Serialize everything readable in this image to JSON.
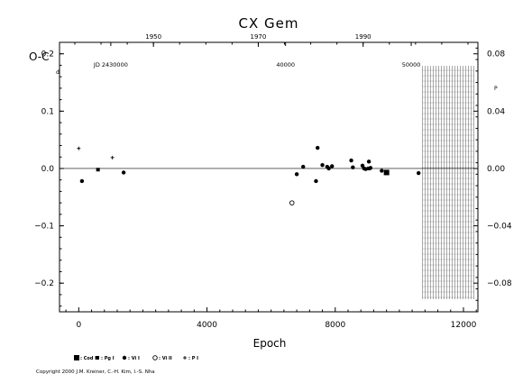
{
  "chart_data": {
    "type": "scatter",
    "title": "CX Gem",
    "ylabel_left": "O-C",
    "ylabel_left_unit": "d",
    "ylabel_right_unit": "P",
    "xlabel": "Epoch",
    "xlim": [
      -600,
      12450
    ],
    "ylim": [
      -0.25,
      0.22
    ],
    "x_ticks": [
      0,
      4000,
      8000,
      12000
    ],
    "x_tick_labels": [
      "0",
      "4000",
      "8000",
      "12000"
    ],
    "y_ticks": [
      0.2,
      0.1,
      0.0,
      -0.1,
      -0.2
    ],
    "y_tick_labels": [
      "0.2",
      "0.1",
      "0.0",
      "−0.1",
      "−0.2"
    ],
    "right_ticks": [
      0.08,
      0.04,
      0.0,
      -0.04,
      -0.08
    ],
    "right_tick_labels": [
      "0.08",
      "0.04",
      "0.00",
      "−0.04",
      "−0.08"
    ],
    "top_year_ticks": [
      {
        "label": "1950",
        "epoch": 2330
      },
      {
        "label": "1970",
        "epoch": 5600
      },
      {
        "label": "1990",
        "epoch": 8870
      }
    ],
    "jd_labels": [
      {
        "label": "JD 2430000",
        "epoch": 1000
      },
      {
        "label": "40000",
        "epoch": 6450
      },
      {
        "label": "50000",
        "epoch": 10370
      }
    ],
    "future_region_start": 10720,
    "series": [
      {
        "name": "Cod I",
        "marker": "square",
        "points": [
          [
            9600,
            -0.007
          ]
        ]
      },
      {
        "name": "Pg I",
        "marker": "square-small",
        "points": [
          [
            600,
            -0.002
          ],
          [
            9050,
            0.0
          ]
        ]
      },
      {
        "name": "Vi I",
        "marker": "dot",
        "points": [
          [
            100,
            -0.022
          ],
          [
            1400,
            -0.007
          ],
          [
            6800,
            -0.01
          ],
          [
            7000,
            0.003
          ],
          [
            7400,
            -0.022
          ],
          [
            7450,
            0.036
          ],
          [
            7600,
            0.006
          ],
          [
            7750,
            0.003
          ],
          [
            7800,
            0.0
          ],
          [
            7900,
            0.004
          ],
          [
            8500,
            0.014
          ],
          [
            8550,
            0.002
          ],
          [
            8850,
            0.005
          ],
          [
            8900,
            0.0
          ],
          [
            8950,
            -0.001
          ],
          [
            9050,
            0.012
          ],
          [
            9100,
            0.001
          ],
          [
            9450,
            -0.004
          ],
          [
            10600,
            -0.008
          ]
        ]
      },
      {
        "name": "Vi II",
        "marker": "circle-open",
        "points": [
          [
            6650,
            -0.06
          ]
        ]
      },
      {
        "name": "P I",
        "marker": "plus",
        "points": [
          [
            0,
            0.035
          ],
          [
            1050,
            0.019
          ]
        ]
      }
    ],
    "legend": [
      "Cod I",
      "Pg I",
      "Vi I",
      "Vi II",
      "P I"
    ],
    "copyright": "Copyright 2000 J.M. Kreiner, C.-H. Kim, I.-S. Nha"
  }
}
